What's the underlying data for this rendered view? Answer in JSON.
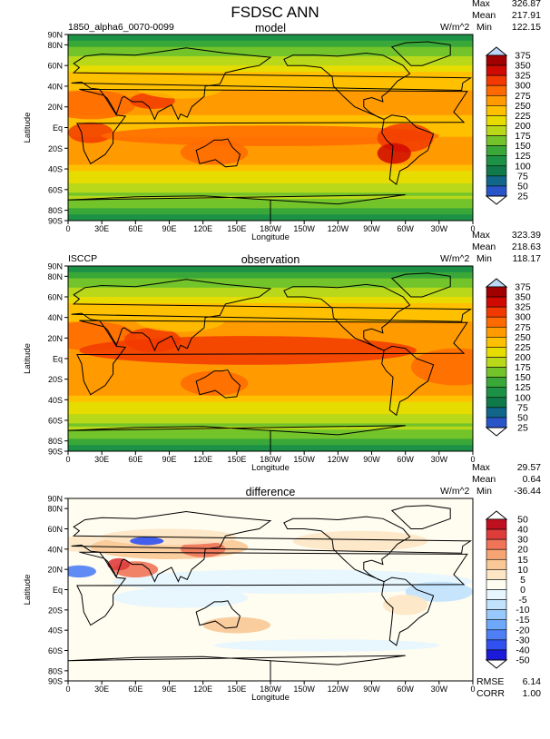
{
  "title": "FSDSC ANN",
  "chart_data": [
    {
      "type": "heatmap",
      "panel": "model",
      "title": "model",
      "case_label": "1850_alpha6_0070-0099",
      "units": "W/m^2",
      "stats": {
        "max": "326.87",
        "mean": "217.91",
        "min": "122.15"
      },
      "stat_labels": {
        "max": "Max",
        "mean": "Mean",
        "min": "Min"
      },
      "xlabel": "Longitude",
      "ylabel": "Latitude",
      "xticks": [
        "0",
        "30E",
        "60E",
        "90E",
        "120E",
        "150E",
        "180W",
        "150W",
        "120W",
        "90W",
        "60W",
        "30W",
        "0"
      ],
      "yticks": [
        "90N",
        "80N",
        "60N",
        "40N",
        "20N",
        "Eq",
        "20S",
        "40S",
        "60S",
        "80S",
        "90S"
      ],
      "colorbar_levels": [
        "375",
        "350",
        "325",
        "300",
        "275",
        "250",
        "225",
        "200",
        "175",
        "150",
        "125",
        "100",
        "75",
        "50",
        "25"
      ],
      "colorbar_colors": [
        "#f2f2ff",
        "#b30000",
        "#e60000",
        "#ff3300",
        "#ff7700",
        "#ffaa00",
        "#ffdd00",
        "#ccdd00",
        "#88cc22",
        "#44bb33",
        "#229944",
        "#117744",
        "#116688",
        "#2255cc",
        "#5533ee",
        "#9955ff",
        "#f2f2ff"
      ]
    },
    {
      "type": "heatmap",
      "panel": "observation",
      "title": "observation",
      "case_label": "ISCCP",
      "units": "W/m^2",
      "stats": {
        "max": "323.39",
        "mean": "218.63",
        "min": "118.17"
      },
      "stat_labels": {
        "max": "Max",
        "mean": "Mean",
        "min": "Min"
      },
      "xlabel": "Longitude",
      "ylabel": "Latitude",
      "xticks": [
        "0",
        "30E",
        "60E",
        "90E",
        "120E",
        "150E",
        "180W",
        "150W",
        "120W",
        "90W",
        "60W",
        "30W",
        "0"
      ],
      "yticks": [
        "90N",
        "80N",
        "60N",
        "40N",
        "20N",
        "Eq",
        "20S",
        "40S",
        "60S",
        "80S",
        "90S"
      ],
      "colorbar_levels": [
        "375",
        "350",
        "325",
        "300",
        "275",
        "250",
        "225",
        "200",
        "175",
        "150",
        "125",
        "100",
        "75",
        "50",
        "25"
      ]
    },
    {
      "type": "heatmap",
      "panel": "difference",
      "title": "difference",
      "units": "W/m^2",
      "stats": {
        "max": "29.57",
        "mean": "0.64",
        "min": "-36.44"
      },
      "stat_labels": {
        "max": "Max",
        "mean": "Mean",
        "min": "Min"
      },
      "rmse_label": "RMSE",
      "rmse": "6.14",
      "corr_label": "CORR",
      "corr": "1.00",
      "xlabel": "Longitude",
      "ylabel": "Latitude",
      "xticks": [
        "0",
        "30E",
        "60E",
        "90E",
        "120E",
        "150E",
        "180W",
        "150W",
        "120W",
        "90W",
        "60W",
        "30W",
        "0"
      ],
      "yticks": [
        "90N",
        "80N",
        "60N",
        "40N",
        "20N",
        "Eq",
        "20S",
        "40S",
        "60S",
        "80S",
        "90S"
      ],
      "colorbar_levels": [
        "50",
        "40",
        "30",
        "20",
        "15",
        "10",
        "5",
        "0",
        "-5",
        "-10",
        "-15",
        "-20",
        "-30",
        "-40",
        "-50"
      ]
    }
  ]
}
